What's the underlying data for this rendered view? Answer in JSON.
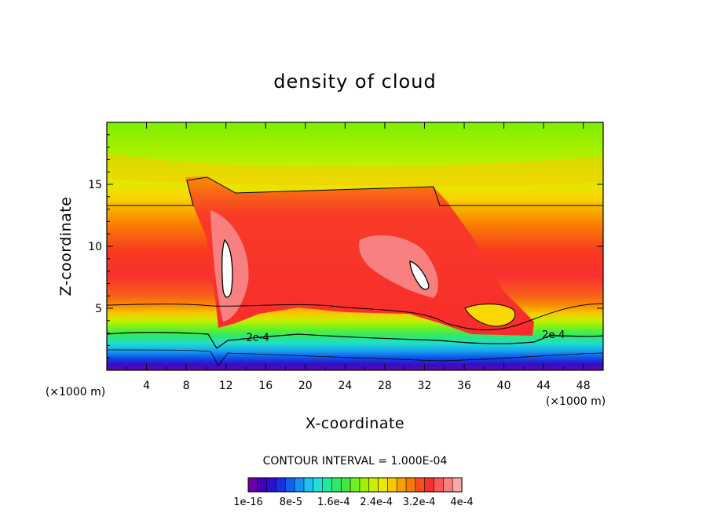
{
  "chart_data": {
    "type": "heatmap",
    "title": "density of cloud",
    "xlabel": "X-coordinate",
    "ylabel": "Z-coordinate",
    "x_unit": "(×1000 m)",
    "xlim": [
      0,
      50
    ],
    "ylim": [
      0,
      20
    ],
    "x_ticks": [
      4,
      8,
      12,
      16,
      20,
      24,
      28,
      32,
      36,
      40,
      44,
      48
    ],
    "y_ticks": [
      5,
      10,
      15
    ],
    "contour_interval_text": "CONTOUR INTERVAL = 1.000E-04",
    "contour_labels": [
      {
        "text": "2e-4",
        "x": 15.2,
        "z": 2.7
      },
      {
        "text": "2e-4",
        "x": 45.0,
        "z": 2.9
      }
    ],
    "colorbar": {
      "colors": [
        "#6a00a8",
        "#4400bb",
        "#2a10d0",
        "#1a30e0",
        "#1060ee",
        "#1890f0",
        "#20c0f0",
        "#20e0d8",
        "#20e8a0",
        "#30e868",
        "#40e840",
        "#70f020",
        "#a0f000",
        "#c8f000",
        "#e8e800",
        "#f8c800",
        "#f8a000",
        "#f87800",
        "#f85020",
        "#f83030",
        "#f85858",
        "#f88080",
        "#f8a8a8"
      ],
      "labels": [
        "1e-16",
        "8e-5",
        "1.6e-4",
        "2.4e-4",
        "3.2e-4",
        "4e-4"
      ]
    }
  }
}
